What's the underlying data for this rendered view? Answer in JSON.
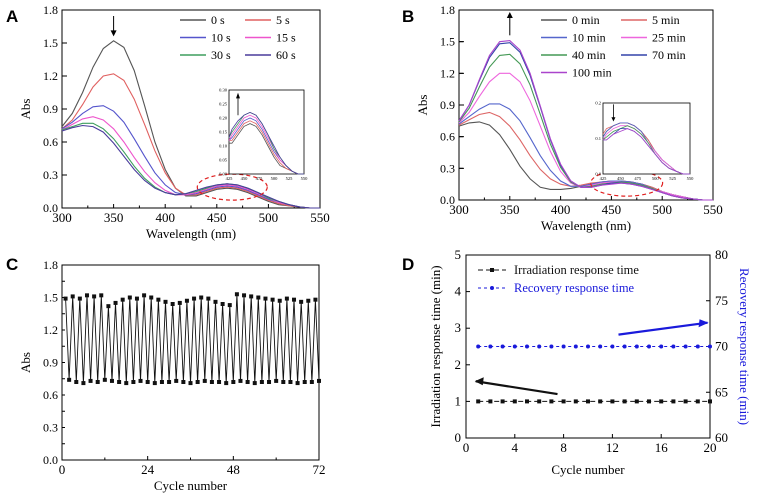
{
  "chart_data": [
    {
      "id": "A",
      "type": "line",
      "panel_label": "A",
      "title": "",
      "xlabel": "Wavelength (nm)",
      "ylabel": "Abs",
      "xlim": [
        300,
        550
      ],
      "ylim": [
        0.0,
        1.8
      ],
      "xticks": [
        300,
        350,
        400,
        450,
        500,
        550
      ],
      "yticks": [
        0.0,
        0.3,
        0.6,
        0.9,
        1.2,
        1.5,
        1.8
      ],
      "ytick_labels": [
        "0.0",
        "0.3",
        "0.6",
        "0.9",
        "1.2",
        "1.5",
        "1.8"
      ],
      "legend_position": "top-right",
      "x": [
        300,
        310,
        320,
        330,
        340,
        350,
        360,
        370,
        380,
        390,
        400,
        410,
        420,
        430,
        440,
        450,
        460,
        470,
        480,
        490,
        500,
        510,
        520,
        530,
        540,
        550
      ],
      "series": [
        {
          "name": "0 s",
          "color": "#555555",
          "values": [
            0.74,
            0.86,
            1.05,
            1.28,
            1.45,
            1.52,
            1.46,
            1.25,
            0.93,
            0.6,
            0.35,
            0.18,
            0.11,
            0.11,
            0.14,
            0.17,
            0.18,
            0.17,
            0.14,
            0.1,
            0.06,
            0.03,
            0.02,
            0.01,
            0.0,
            0.0
          ]
        },
        {
          "name": "5 s",
          "color": "#e06060",
          "values": [
            0.72,
            0.8,
            0.94,
            1.1,
            1.2,
            1.22,
            1.16,
            0.99,
            0.76,
            0.52,
            0.32,
            0.18,
            0.12,
            0.12,
            0.15,
            0.18,
            0.19,
            0.18,
            0.15,
            0.11,
            0.07,
            0.04,
            0.02,
            0.01,
            0.0,
            0.0
          ]
        },
        {
          "name": "10 s",
          "color": "#5555cc",
          "values": [
            0.72,
            0.78,
            0.86,
            0.92,
            0.93,
            0.88,
            0.78,
            0.63,
            0.47,
            0.32,
            0.21,
            0.14,
            0.12,
            0.13,
            0.16,
            0.19,
            0.2,
            0.19,
            0.16,
            0.12,
            0.08,
            0.05,
            0.03,
            0.01,
            0.0,
            0.0
          ]
        },
        {
          "name": "15 s",
          "color": "#ee55cc",
          "values": [
            0.71,
            0.76,
            0.81,
            0.83,
            0.8,
            0.72,
            0.6,
            0.46,
            0.33,
            0.23,
            0.16,
            0.12,
            0.12,
            0.14,
            0.17,
            0.2,
            0.21,
            0.2,
            0.17,
            0.13,
            0.09,
            0.05,
            0.03,
            0.01,
            0.0,
            0.0
          ]
        },
        {
          "name": "30 s",
          "color": "#3e9e5e",
          "values": [
            0.71,
            0.74,
            0.77,
            0.77,
            0.72,
            0.63,
            0.51,
            0.38,
            0.27,
            0.19,
            0.14,
            0.12,
            0.13,
            0.15,
            0.18,
            0.21,
            0.22,
            0.21,
            0.18,
            0.14,
            0.09,
            0.06,
            0.03,
            0.01,
            0.0,
            0.0
          ]
        },
        {
          "name": "60 s",
          "color": "#4a3c9c",
          "values": [
            0.7,
            0.73,
            0.75,
            0.74,
            0.69,
            0.59,
            0.47,
            0.35,
            0.25,
            0.18,
            0.14,
            0.12,
            0.13,
            0.16,
            0.19,
            0.21,
            0.22,
            0.21,
            0.18,
            0.14,
            0.1,
            0.06,
            0.03,
            0.01,
            0.0,
            0.0
          ]
        }
      ],
      "annotations": [
        "down arrow at 350 nm",
        "dashed ellipse around 430-500 nm"
      ],
      "inset": {
        "xlim": [
          425,
          550
        ],
        "ylim": [
          0.0,
          0.3
        ],
        "xtick_labels": [
          "425",
          "450",
          "475",
          "500",
          "525",
          "550"
        ],
        "ytick_labels": [
          "0.00",
          "0.05",
          "0.10",
          "0.15",
          "0.20",
          "0.25",
          "0.30"
        ],
        "annotation": "up arrow at 440 nm"
      }
    },
    {
      "id": "B",
      "type": "line",
      "panel_label": "B",
      "title": "",
      "xlabel": "Wavelength (nm)",
      "ylabel": "Abs",
      "xlim": [
        300,
        550
      ],
      "ylim": [
        0.0,
        1.8
      ],
      "xticks": [
        300,
        350,
        400,
        450,
        500,
        550
      ],
      "yticks": [
        0.0,
        0.3,
        0.6,
        0.9,
        1.2,
        1.5,
        1.8
      ],
      "ytick_labels": [
        "0.0",
        "0.3",
        "0.6",
        "0.9",
        "1.2",
        "1.5",
        "1.8"
      ],
      "legend_position": "top-right",
      "x": [
        300,
        310,
        320,
        330,
        340,
        350,
        360,
        370,
        380,
        390,
        400,
        410,
        420,
        430,
        440,
        450,
        460,
        470,
        480,
        490,
        500,
        510,
        520,
        530,
        540,
        550
      ],
      "series": [
        {
          "name": "0 min",
          "color": "#555555",
          "values": [
            0.7,
            0.73,
            0.74,
            0.71,
            0.62,
            0.48,
            0.32,
            0.2,
            0.12,
            0.1,
            0.1,
            0.11,
            0.13,
            0.15,
            0.17,
            0.18,
            0.18,
            0.17,
            0.15,
            0.12,
            0.08,
            0.05,
            0.03,
            0.01,
            0.0,
            0.0
          ]
        },
        {
          "name": "5 min",
          "color": "#dd6666",
          "values": [
            0.71,
            0.76,
            0.81,
            0.83,
            0.79,
            0.7,
            0.57,
            0.42,
            0.29,
            0.2,
            0.15,
            0.13,
            0.14,
            0.16,
            0.17,
            0.18,
            0.18,
            0.17,
            0.15,
            0.12,
            0.08,
            0.05,
            0.03,
            0.01,
            0.0,
            0.0
          ]
        },
        {
          "name": "10 min",
          "color": "#5566cc",
          "values": [
            0.72,
            0.79,
            0.86,
            0.91,
            0.91,
            0.86,
            0.75,
            0.59,
            0.42,
            0.28,
            0.18,
            0.13,
            0.13,
            0.15,
            0.17,
            0.18,
            0.18,
            0.17,
            0.15,
            0.11,
            0.08,
            0.05,
            0.03,
            0.01,
            0.0,
            0.0
          ]
        },
        {
          "name": "25 min",
          "color": "#ee66dd",
          "values": [
            0.73,
            0.83,
            0.98,
            1.12,
            1.2,
            1.2,
            1.12,
            0.94,
            0.7,
            0.46,
            0.27,
            0.16,
            0.12,
            0.14,
            0.16,
            0.17,
            0.17,
            0.16,
            0.14,
            0.11,
            0.08,
            0.05,
            0.03,
            0.01,
            0.0,
            0.0
          ]
        },
        {
          "name": "40 min",
          "color": "#449955",
          "values": [
            0.74,
            0.87,
            1.07,
            1.26,
            1.37,
            1.38,
            1.29,
            1.09,
            0.81,
            0.53,
            0.31,
            0.17,
            0.12,
            0.13,
            0.15,
            0.16,
            0.17,
            0.16,
            0.14,
            0.11,
            0.07,
            0.04,
            0.02,
            0.01,
            0.0,
            0.0
          ]
        },
        {
          "name": "70 min",
          "color": "#3344aa",
          "values": [
            0.75,
            0.9,
            1.13,
            1.35,
            1.48,
            1.49,
            1.4,
            1.18,
            0.88,
            0.57,
            0.33,
            0.18,
            0.12,
            0.12,
            0.14,
            0.16,
            0.16,
            0.15,
            0.13,
            0.1,
            0.07,
            0.04,
            0.02,
            0.01,
            0.0,
            0.0
          ]
        },
        {
          "name": "100 min",
          "color": "#aa44cc",
          "values": [
            0.75,
            0.9,
            1.14,
            1.37,
            1.5,
            1.51,
            1.42,
            1.2,
            0.89,
            0.58,
            0.34,
            0.18,
            0.12,
            0.12,
            0.14,
            0.15,
            0.16,
            0.15,
            0.13,
            0.1,
            0.07,
            0.04,
            0.02,
            0.01,
            0.0,
            0.0
          ]
        }
      ],
      "annotations": [
        "up arrow at 350 nm",
        "dashed ellipse around 430-500 nm"
      ],
      "inset": {
        "xlim": [
          425,
          550
        ],
        "ylim": [
          0.0,
          0.25
        ],
        "xtick_labels": [
          "425",
          "450",
          "475",
          "500",
          "525",
          "550"
        ],
        "ytick_labels": [
          "0.0",
          "0.1",
          "0.2"
        ],
        "annotation": "down arrow at 440 nm"
      }
    },
    {
      "id": "C",
      "type": "line",
      "panel_label": "C",
      "title": "",
      "xlabel": "Cycle number",
      "ylabel": "Abs",
      "xlim": [
        0,
        72
      ],
      "ylim": [
        0.0,
        1.8
      ],
      "xticks": [
        0,
        24,
        48,
        72
      ],
      "yticks": [
        0.0,
        0.15,
        0.3,
        0.45,
        0.6,
        0.75,
        0.9,
        1.05,
        1.2,
        1.35,
        1.5,
        1.65,
        1.8
      ],
      "ytick_labels": [
        "0.0",
        "0.3",
        "0.6",
        "0.9",
        "1.2",
        "1.5",
        "1.8"
      ],
      "series": [
        {
          "name": "Abs cycling",
          "color": "#111111",
          "high_values": [
            1.49,
            1.51,
            1.49,
            1.52,
            1.51,
            1.52,
            1.42,
            1.45,
            1.48,
            1.5,
            1.49,
            1.52,
            1.5,
            1.48,
            1.46,
            1.44,
            1.45,
            1.47,
            1.49,
            1.5,
            1.49,
            1.46,
            1.44,
            1.43,
            1.53,
            1.52,
            1.51,
            1.5,
            1.49,
            1.48,
            1.47,
            1.49,
            1.48,
            1.46,
            1.47,
            1.48
          ],
          "low_values": [
            0.74,
            0.72,
            0.71,
            0.73,
            0.72,
            0.74,
            0.73,
            0.72,
            0.71,
            0.72,
            0.73,
            0.72,
            0.71,
            0.72,
            0.72,
            0.73,
            0.72,
            0.71,
            0.72,
            0.73,
            0.72,
            0.72,
            0.71,
            0.72,
            0.73,
            0.72,
            0.71,
            0.72,
            0.72,
            0.73,
            0.72,
            0.72,
            0.71,
            0.72,
            0.72,
            0.73
          ]
        }
      ]
    },
    {
      "id": "D",
      "type": "line",
      "panel_label": "D",
      "title": "",
      "xlabel": "Cycle number",
      "ylabel": "Irradiation response time (min)",
      "y2label": "Recovery response time (min)",
      "xlim": [
        0,
        20
      ],
      "ylim": [
        0,
        5
      ],
      "y2lim": [
        60,
        80
      ],
      "xticks": [
        0,
        4,
        8,
        12,
        16,
        20
      ],
      "yticks": [
        0,
        1,
        2,
        3,
        4,
        5
      ],
      "y2ticks": [
        60,
        65,
        70,
        75,
        80
      ],
      "legend_position": "top-left",
      "x": [
        1,
        2,
        3,
        4,
        5,
        6,
        7,
        8,
        9,
        10,
        11,
        12,
        13,
        14,
        15,
        16,
        17,
        18,
        19,
        20
      ],
      "series": [
        {
          "name": "Irradiation response time",
          "axis": "left",
          "color": "#111111",
          "marker": "square",
          "values": [
            1,
            1,
            1,
            1,
            1,
            1,
            1,
            1,
            1,
            1,
            1,
            1,
            1,
            1,
            1,
            1,
            1,
            1,
            1,
            1
          ]
        },
        {
          "name": "Recovery response time",
          "axis": "right",
          "color": "#1a1adb",
          "marker": "circle",
          "values": [
            70,
            70,
            70,
            70,
            70,
            70,
            70,
            70,
            70,
            70,
            70,
            70,
            70,
            70,
            70,
            70,
            70,
            70,
            70,
            70
          ]
        }
      ],
      "annotations": [
        "black arrow pointing to left axis",
        "blue arrow pointing to right axis"
      ]
    }
  ]
}
